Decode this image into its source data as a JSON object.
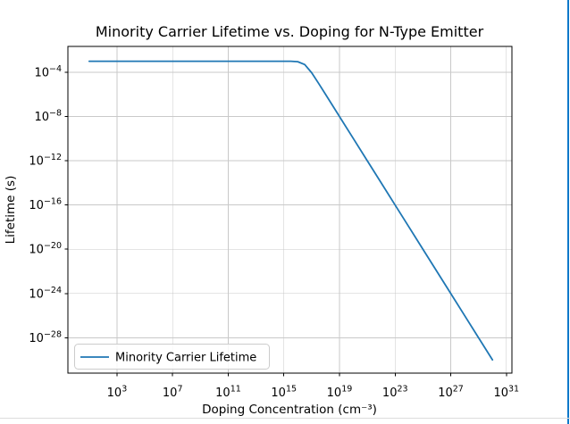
{
  "window": {
    "right_accent_color": "#0d78c9",
    "bottom_divider_color": "#dcdcdc",
    "background_color": "#ffffff"
  },
  "chart_data": {
    "type": "line",
    "title": "Minority Carrier Lifetime vs. Doping for N-Type Emitter",
    "xlabel": "Doping Concentration (cm⁻³)",
    "ylabel": "Lifetime (s)",
    "x_scale": "log",
    "y_scale": "log",
    "grid": true,
    "x_ticks_exponents": [
      3,
      7,
      11,
      15,
      19,
      23,
      27,
      31
    ],
    "y_ticks_exponents": [
      -4,
      -8,
      -12,
      -16,
      -20,
      -24,
      -28
    ],
    "xlim_exponents": [
      -0.53,
      31.4
    ],
    "ylim_exponents": [
      -31.2,
      -1.66
    ],
    "line_color": "#1f77b4",
    "grid_color": "#c9c9c9",
    "spine_color": "#000000",
    "legend": {
      "position": "lower left",
      "entries": [
        {
          "label": "Minority Carrier Lifetime",
          "color": "#1f77b4"
        }
      ]
    },
    "series": [
      {
        "name": "Minority Carrier Lifetime",
        "x": [
          10.0,
          1000.0,
          100000.0,
          10000000.0,
          1000000000.0,
          100000000000.0,
          10000000000000.0,
          100000000000000.0,
          1000000000000000.0,
          3160000000000000.0,
          1e+16,
          3.16e+16,
          1e+17,
          3.16e+17,
          1e+18,
          1e+19,
          1e+20,
          1e+21,
          1e+22,
          1e+23,
          1e+24,
          1e+25,
          1e+26,
          1e+27,
          1e+28,
          1e+29,
          1e+30
        ],
        "y": [
          0.001,
          0.001,
          0.001,
          0.001,
          0.001,
          0.001,
          0.001,
          0.0009999,
          0.000999,
          0.00099,
          0.000909,
          0.0005,
          9.09e-05,
          9.9e-06,
          9.99e-07,
          1e-08,
          1e-10,
          1e-12,
          1e-14,
          1e-16,
          1e-18,
          1e-20,
          1e-22,
          1e-24,
          1e-26,
          1e-28,
          1e-30
        ]
      }
    ]
  }
}
